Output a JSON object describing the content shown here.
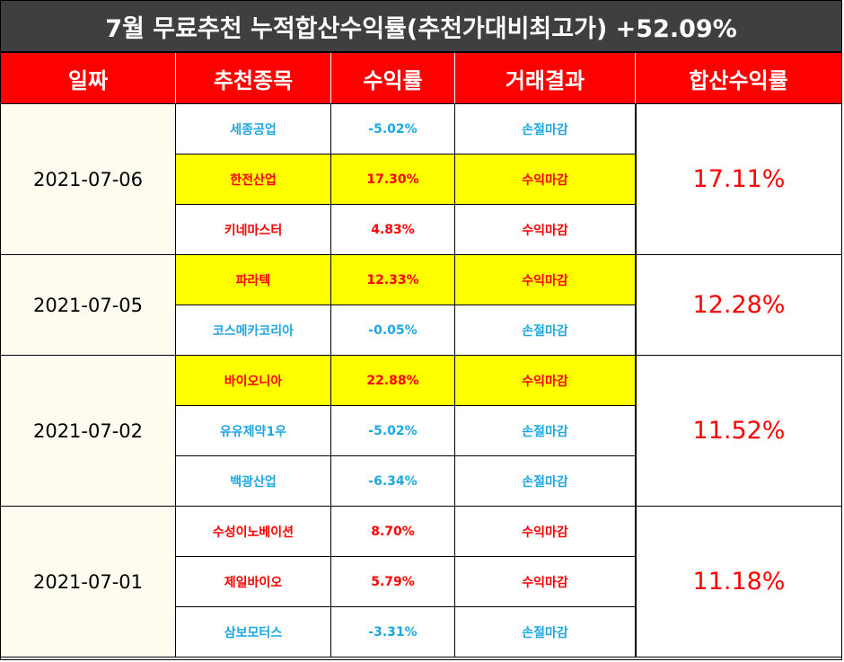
{
  "title": "7월 무료추천 누적합산수익률(추천가대비최고가) +52.09%",
  "headers": [
    "일짜",
    "추천종목",
    "수익률",
    "거래결과",
    "합산수익률"
  ],
  "colors": {
    "title_bg": "#3f3f3f",
    "header_bg": "#ff0000",
    "loss": "#1ea7e0",
    "profit": "#ff0000",
    "highlight": "#ffff00"
  },
  "groups": [
    {
      "date": "2021-07-06",
      "total": "17.11%",
      "rows": [
        {
          "name": "세종공업",
          "rate": "-5.02%",
          "result": "손절마감",
          "tone": "blue",
          "highlight": false
        },
        {
          "name": "한전산업",
          "rate": "17.30%",
          "result": "수익마감",
          "tone": "red",
          "highlight": true
        },
        {
          "name": "키네마스터",
          "rate": "4.83%",
          "result": "수익마감",
          "tone": "red",
          "highlight": false
        }
      ]
    },
    {
      "date": "2021-07-05",
      "total": "12.28%",
      "rows": [
        {
          "name": "파라텍",
          "rate": "12.33%",
          "result": "수익마감",
          "tone": "red",
          "highlight": true
        },
        {
          "name": "코스메카코리아",
          "rate": "-0.05%",
          "result": "손절마감",
          "tone": "blue",
          "highlight": false
        }
      ]
    },
    {
      "date": "2021-07-02",
      "total": "11.52%",
      "rows": [
        {
          "name": "바이오니아",
          "rate": "22.88%",
          "result": "수익마감",
          "tone": "red",
          "highlight": true
        },
        {
          "name": "유유제약1우",
          "rate": "-5.02%",
          "result": "손절마감",
          "tone": "blue",
          "highlight": false
        },
        {
          "name": "백광산업",
          "rate": "-6.34%",
          "result": "손절마감",
          "tone": "blue",
          "highlight": false
        }
      ]
    },
    {
      "date": "2021-07-01",
      "total": "11.18%",
      "rows": [
        {
          "name": "수성이노베이션",
          "rate": "8.70%",
          "result": "수익마감",
          "tone": "red",
          "highlight": false
        },
        {
          "name": "제일바이오",
          "rate": "5.79%",
          "result": "수익마감",
          "tone": "red",
          "highlight": false
        },
        {
          "name": "삼보모터스",
          "rate": "-3.31%",
          "result": "손절마감",
          "tone": "blue",
          "highlight": false
        }
      ]
    }
  ]
}
